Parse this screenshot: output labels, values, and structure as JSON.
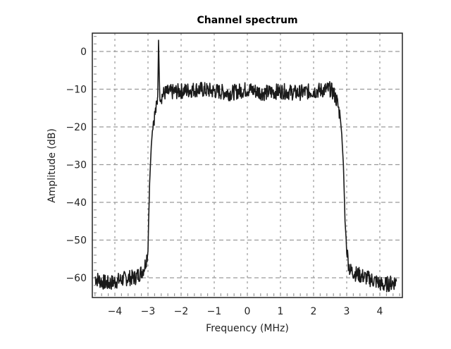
{
  "chart_data": {
    "type": "line",
    "title": "Channel spectrum",
    "xlabel": "Frequency (MHz)",
    "ylabel": "Amplitude (dB)",
    "xlim": [
      -4.65,
      4.7
    ],
    "ylim": [
      -65,
      5
    ],
    "xticks": [
      -4,
      -3,
      -2,
      -1,
      0,
      1,
      2,
      3,
      4
    ],
    "xtick_labels": [
      "−4",
      "−3",
      "−2",
      "−1",
      "0",
      "1",
      "2",
      "3",
      "4"
    ],
    "yticks": [
      0,
      -10,
      -20,
      -30,
      -40,
      -50,
      -60
    ],
    "ytick_labels": [
      "0",
      "−10",
      "−20",
      "−30",
      "−40",
      "−50",
      "−60"
    ],
    "grid": true,
    "grid_style": "dashed",
    "legend": null,
    "series": [
      {
        "name": "Channel spectrum",
        "color": "#1a1a1a",
        "x": [
          -4.6,
          -4.4,
          -4.2,
          -4.0,
          -3.8,
          -3.6,
          -3.4,
          -3.2,
          -3.1,
          -3.0,
          -2.98,
          -2.95,
          -2.9,
          -2.85,
          -2.8,
          -2.75,
          -2.72,
          -2.7,
          -2.68,
          -2.65,
          -2.6,
          -2.5,
          -2.0,
          -1.5,
          -1.0,
          -0.5,
          0.0,
          0.5,
          1.0,
          1.5,
          2.0,
          2.5,
          2.6,
          2.7,
          2.8,
          2.85,
          2.9,
          2.95,
          3.0,
          3.05,
          3.1,
          3.3,
          3.6,
          3.9,
          4.1,
          4.3,
          4.5
        ],
        "values": [
          -60,
          -61,
          -61.5,
          -61,
          -60.5,
          -60,
          -60,
          -58.5,
          -57,
          -53,
          -45,
          -35,
          -25,
          -19,
          -17,
          -15,
          -13,
          -9,
          3,
          -11,
          -12,
          -11,
          -10.5,
          -10,
          -10.5,
          -11,
          -10,
          -11,
          -10.5,
          -11,
          -10.5,
          -10,
          -11,
          -13,
          -17,
          -22,
          -30,
          -45,
          -52,
          -56,
          -58,
          -59,
          -60,
          -61,
          -62,
          -61.5,
          -61
        ]
      }
    ],
    "annotations": [
      {
        "text": "narrow spike near -2.7 MHz reaching ~+3 dB",
        "x": -2.7,
        "y": 3
      }
    ]
  }
}
